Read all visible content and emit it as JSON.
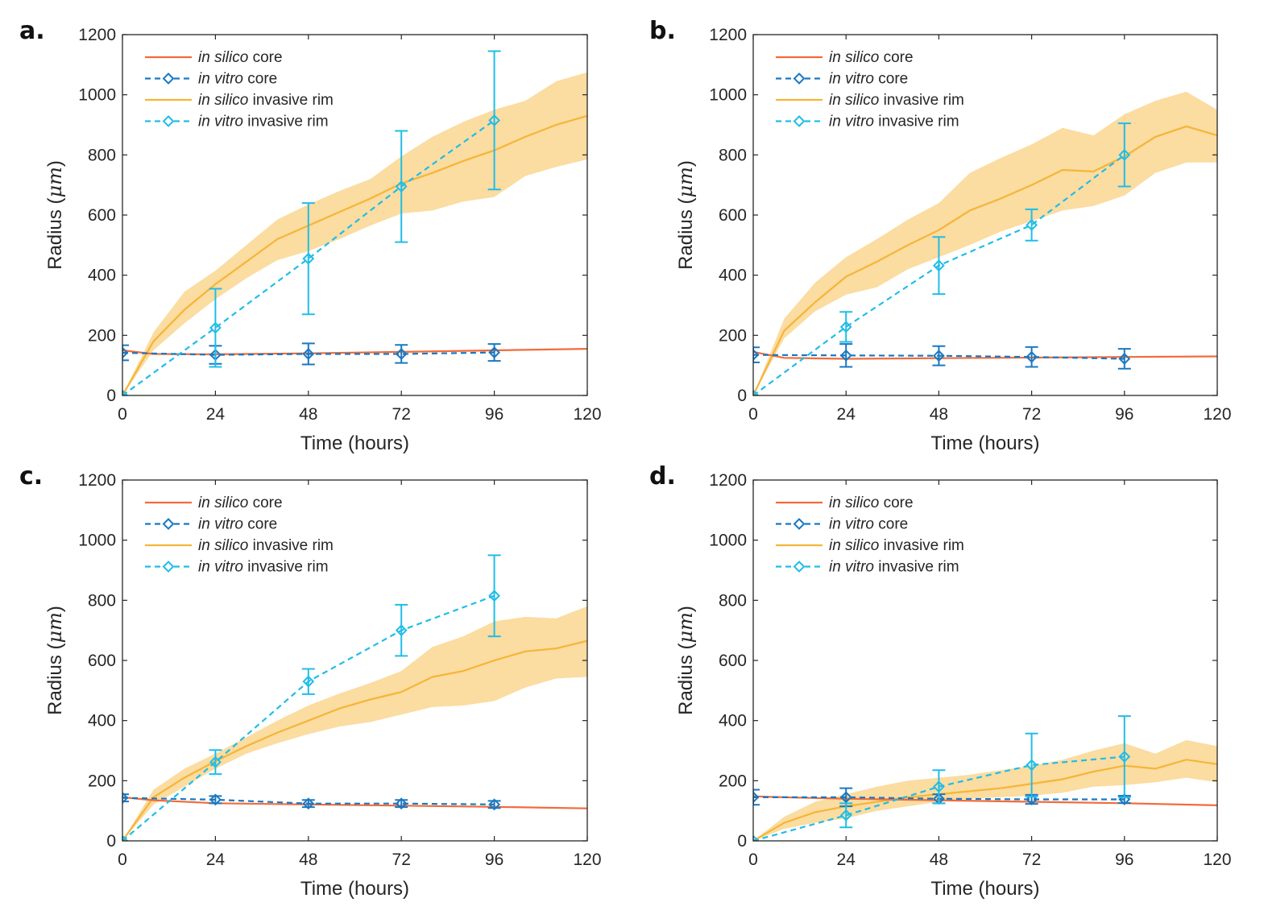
{
  "chart_data": [
    {
      "type": "line",
      "panel_label": "a.",
      "xlabel": "Time (hours)",
      "ylabel_main": "Radius (",
      "ylabel_unit": "μm",
      "ylabel_end": ")",
      "xlim": [
        0,
        120
      ],
      "ylim": [
        0,
        1200
      ],
      "xticks": [
        "0",
        "24",
        "48",
        "72",
        "96",
        "120"
      ],
      "yticks": [
        "0",
        "200",
        "400",
        "600",
        "800",
        "1000",
        "1200"
      ],
      "legend_position": "top-left",
      "colors": {
        "silico_core": "#f26b3a",
        "vitro_core": "#1a78c2",
        "silico_rim": "#f5b537",
        "rim_band": "#fbdca1",
        "vitro_rim": "#20bde8"
      },
      "series": [
        {
          "key": "silico_core",
          "name_italic": "in silico",
          "name_rest": " core",
          "x": [
            0,
            8,
            24,
            48,
            72,
            96,
            120
          ],
          "y": [
            150,
            138,
            137,
            140,
            145,
            150,
            155
          ]
        },
        {
          "key": "vitro_core",
          "name_italic": "in vitro",
          "name_rest": " core",
          "x": [
            0,
            24,
            48,
            72,
            96
          ],
          "y": [
            142,
            135,
            138,
            138,
            143
          ],
          "err": [
            25,
            30,
            35,
            30,
            28
          ]
        },
        {
          "key": "silico_rim",
          "name_italic": "in silico",
          "name_rest": " invasive rim",
          "x": [
            0,
            8,
            16,
            24,
            32,
            40,
            48,
            56,
            64,
            72,
            80,
            88,
            96,
            104,
            112,
            120
          ],
          "y": [
            0,
            180,
            285,
            370,
            445,
            520,
            565,
            610,
            655,
            705,
            740,
            780,
            815,
            860,
            900,
            930
          ],
          "band_low": [
            0,
            150,
            240,
            320,
            390,
            450,
            480,
            520,
            565,
            605,
            615,
            645,
            660,
            730,
            760,
            785
          ],
          "band_high": [
            0,
            210,
            345,
            415,
            500,
            585,
            635,
            680,
            720,
            795,
            860,
            910,
            950,
            980,
            1045,
            1075
          ]
        },
        {
          "key": "vitro_rim",
          "name_italic": "in vitro",
          "name_rest": " invasive rim",
          "x": [
            0,
            24,
            48,
            72,
            96
          ],
          "y": [
            0,
            225,
            455,
            695,
            915
          ],
          "err": [
            0,
            130,
            185,
            185,
            230
          ]
        }
      ]
    },
    {
      "type": "line",
      "panel_label": "b.",
      "xlabel": "Time (hours)",
      "ylabel_main": "Radius (",
      "ylabel_unit": "μm",
      "ylabel_end": ")",
      "xlim": [
        0,
        120
      ],
      "ylim": [
        0,
        1200
      ],
      "xticks": [
        "0",
        "24",
        "48",
        "72",
        "96",
        "120"
      ],
      "yticks": [
        "0",
        "200",
        "400",
        "600",
        "800",
        "1000",
        "1200"
      ],
      "legend_position": "top-left",
      "colors": {
        "silico_core": "#f26b3a",
        "vitro_core": "#1a78c2",
        "silico_rim": "#f5b537",
        "rim_band": "#fbdca1",
        "vitro_rim": "#20bde8"
      },
      "series": [
        {
          "key": "silico_core",
          "name_italic": "in silico",
          "name_rest": " core",
          "x": [
            0,
            8,
            24,
            48,
            72,
            96,
            120
          ],
          "y": [
            145,
            125,
            122,
            124,
            126,
            128,
            130
          ]
        },
        {
          "key": "vitro_core",
          "name_italic": "in vitro",
          "name_rest": " core",
          "x": [
            0,
            24,
            48,
            72,
            96
          ],
          "y": [
            135,
            133,
            132,
            128,
            122
          ],
          "err": [
            25,
            38,
            32,
            33,
            33
          ]
        },
        {
          "key": "silico_rim",
          "name_italic": "in silico",
          "name_rest": " invasive rim",
          "x": [
            0,
            8,
            16,
            24,
            32,
            40,
            48,
            56,
            64,
            72,
            80,
            88,
            96,
            104,
            112,
            120
          ],
          "y": [
            0,
            215,
            310,
            395,
            445,
            500,
            550,
            615,
            655,
            700,
            750,
            745,
            795,
            860,
            895,
            865
          ],
          "band_low": [
            0,
            190,
            280,
            335,
            360,
            420,
            460,
            500,
            545,
            580,
            615,
            630,
            665,
            740,
            775,
            775
          ],
          "band_high": [
            0,
            255,
            375,
            460,
            520,
            585,
            640,
            740,
            790,
            835,
            890,
            865,
            935,
            980,
            1010,
            950
          ]
        },
        {
          "key": "vitro_rim",
          "name_italic": "in vitro",
          "name_rest": " invasive rim",
          "x": [
            0,
            24,
            48,
            72,
            96
          ],
          "y": [
            0,
            228,
            432,
            567,
            800
          ],
          "err": [
            0,
            50,
            95,
            52,
            105
          ]
        }
      ]
    },
    {
      "type": "line",
      "panel_label": "c.",
      "xlabel": "Time (hours)",
      "ylabel_main": "Radius (",
      "ylabel_unit": "μm",
      "ylabel_end": ")",
      "xlim": [
        0,
        120
      ],
      "ylim": [
        0,
        1200
      ],
      "xticks": [
        "0",
        "24",
        "48",
        "72",
        "96",
        "120"
      ],
      "yticks": [
        "0",
        "200",
        "400",
        "600",
        "800",
        "1000",
        "1200"
      ],
      "legend_position": "top-left",
      "colors": {
        "silico_core": "#f26b3a",
        "vitro_core": "#1a78c2",
        "silico_rim": "#f5b537",
        "rim_band": "#fbdca1",
        "vitro_rim": "#20bde8"
      },
      "series": [
        {
          "key": "silico_core",
          "name_italic": "in silico",
          "name_rest": " core",
          "x": [
            0,
            8,
            24,
            48,
            72,
            96,
            120
          ],
          "y": [
            145,
            135,
            125,
            121,
            117,
            113,
            108
          ]
        },
        {
          "key": "vitro_core",
          "name_italic": "in vitro",
          "name_rest": " core",
          "x": [
            0,
            24,
            48,
            72,
            96
          ],
          "y": [
            143,
            137,
            124,
            124,
            121
          ],
          "err": [
            12,
            12,
            12,
            12,
            12
          ]
        },
        {
          "key": "silico_rim",
          "name_italic": "in silico",
          "name_rest": " invasive rim",
          "x": [
            0,
            8,
            16,
            24,
            32,
            40,
            48,
            56,
            64,
            72,
            80,
            88,
            96,
            104,
            112,
            120
          ],
          "y": [
            0,
            145,
            210,
            265,
            315,
            360,
            400,
            440,
            470,
            495,
            545,
            565,
            600,
            630,
            640,
            665
          ],
          "band_low": [
            0,
            120,
            180,
            240,
            290,
            325,
            355,
            380,
            395,
            420,
            445,
            450,
            465,
            510,
            540,
            545
          ],
          "band_high": [
            0,
            170,
            240,
            290,
            345,
            400,
            450,
            490,
            525,
            565,
            645,
            680,
            730,
            745,
            740,
            780
          ]
        },
        {
          "key": "vitro_rim",
          "name_italic": "in vitro",
          "name_rest": " invasive rim",
          "x": [
            0,
            24,
            48,
            72,
            96
          ],
          "y": [
            0,
            262,
            530,
            700,
            815
          ],
          "err": [
            0,
            40,
            42,
            85,
            135
          ]
        }
      ]
    },
    {
      "type": "line",
      "panel_label": "d.",
      "xlabel": "Time (hours)",
      "ylabel_main": "Radius (",
      "ylabel_unit": "μm",
      "ylabel_end": ")",
      "xlim": [
        0,
        120
      ],
      "ylim": [
        0,
        1200
      ],
      "xticks": [
        "0",
        "24",
        "48",
        "72",
        "96",
        "120"
      ],
      "yticks": [
        "0",
        "200",
        "400",
        "600",
        "800",
        "1000",
        "1200"
      ],
      "legend_position": "top-left",
      "colors": {
        "silico_core": "#f26b3a",
        "vitro_core": "#1a78c2",
        "silico_rim": "#f5b537",
        "rim_band": "#fbdca1",
        "vitro_rim": "#20bde8"
      },
      "series": [
        {
          "key": "silico_core",
          "name_italic": "in silico",
          "name_rest": " core",
          "x": [
            0,
            8,
            24,
            48,
            72,
            96,
            120
          ],
          "y": [
            148,
            145,
            140,
            135,
            130,
            125,
            118
          ]
        },
        {
          "key": "vitro_core",
          "name_italic": "in vitro",
          "name_rest": " core",
          "x": [
            0,
            24,
            48,
            72,
            96
          ],
          "y": [
            145,
            145,
            140,
            138,
            138
          ],
          "err": [
            25,
            30,
            15,
            15,
            12
          ]
        },
        {
          "key": "silico_rim",
          "name_italic": "in silico",
          "name_rest": " invasive rim",
          "x": [
            0,
            8,
            16,
            24,
            32,
            40,
            48,
            56,
            64,
            72,
            80,
            88,
            96,
            104,
            112,
            120
          ],
          "y": [
            0,
            60,
            95,
            115,
            130,
            145,
            155,
            165,
            175,
            190,
            205,
            230,
            250,
            240,
            270,
            255
          ],
          "band_low": [
            0,
            40,
            60,
            75,
            100,
            115,
            130,
            140,
            145,
            150,
            160,
            180,
            185,
            195,
            210,
            195
          ],
          "band_high": [
            0,
            80,
            130,
            155,
            180,
            200,
            210,
            220,
            235,
            250,
            270,
            300,
            325,
            290,
            335,
            315
          ]
        },
        {
          "key": "vitro_rim",
          "name_italic": "in vitro",
          "name_rest": " invasive rim",
          "x": [
            0,
            24,
            48,
            72,
            96
          ],
          "y": [
            0,
            85,
            180,
            252,
            280
          ],
          "err": [
            0,
            40,
            55,
            105,
            135
          ]
        }
      ]
    }
  ]
}
